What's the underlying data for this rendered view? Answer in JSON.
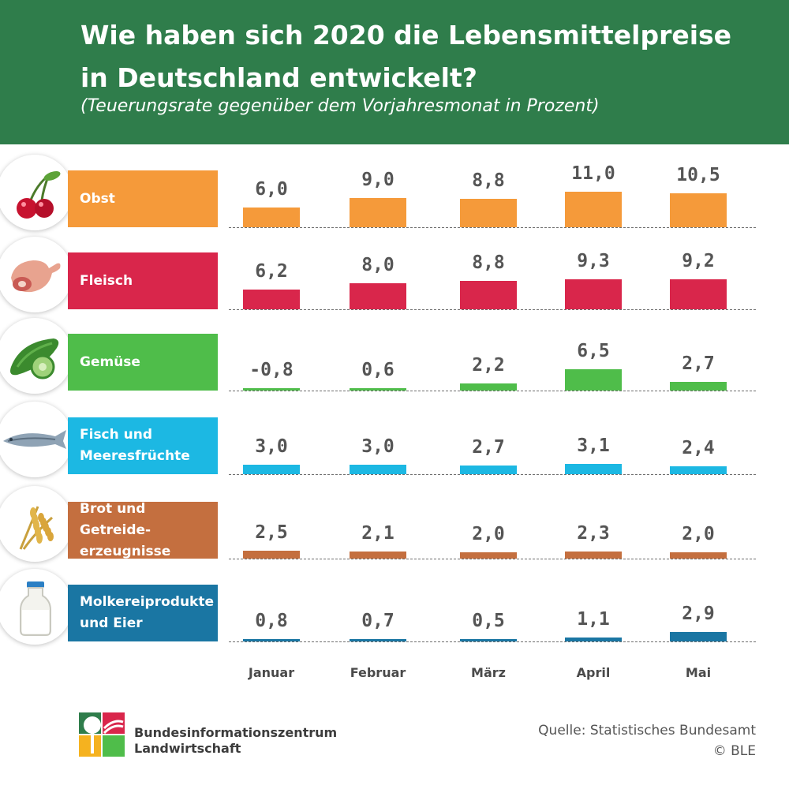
{
  "header": {
    "title_line1": "Wie haben sich 2020 die Lebensmittelpreise",
    "title_line2": "in Deutschland entwickelt?",
    "subtitle": "(Teuerungsrate gegenüber dem Vorjahresmonat in Prozent)"
  },
  "chart_data": {
    "type": "bar",
    "categories": [
      "Januar",
      "Februar",
      "März",
      "April",
      "Mai"
    ],
    "series": [
      {
        "name": "Obst",
        "values": [
          6.0,
          9.0,
          8.8,
          11.0,
          10.5
        ],
        "labels": [
          "6,0",
          "9,0",
          "8,8",
          "11,0",
          "10,5"
        ],
        "color": "#f59a3a",
        "icon": "cherry-icon"
      },
      {
        "name": "Fleisch",
        "values": [
          6.2,
          8.0,
          8.8,
          9.3,
          9.2
        ],
        "labels": [
          "6,2",
          "8,0",
          "8,8",
          "9,3",
          "9,2"
        ],
        "color": "#d9264b",
        "icon": "meat-icon"
      },
      {
        "name": "Gemüse",
        "values": [
          -0.8,
          0.6,
          2.2,
          6.5,
          2.7
        ],
        "labels": [
          "-0,8",
          "0,6",
          "2,2",
          "6,5",
          "2,7"
        ],
        "color": "#4fbd4a",
        "icon": "cucumber-icon"
      },
      {
        "name": "Fisch und Meeresfrüchte",
        "label_lines": [
          "Fisch und",
          "Meeresfrüchte"
        ],
        "values": [
          3.0,
          3.0,
          2.7,
          3.1,
          2.4
        ],
        "labels": [
          "3,0",
          "3,0",
          "2,7",
          "3,1",
          "2,4"
        ],
        "color": "#1cb8e3",
        "icon": "fish-icon"
      },
      {
        "name": "Brot und Getreideerzeugnisse",
        "label_lines": [
          "Brot und Getreide-",
          "erzeugnisse"
        ],
        "values": [
          2.5,
          2.1,
          2.0,
          2.3,
          2.0
        ],
        "labels": [
          "2,5",
          "2,1",
          "2,0",
          "2,3",
          "2,0"
        ],
        "color": "#c46f3f",
        "icon": "wheat-icon"
      },
      {
        "name": "Molkereiprodukte und Eier",
        "label_lines": [
          "Molkereiprodukte",
          "und Eier"
        ],
        "values": [
          0.8,
          0.7,
          0.5,
          1.1,
          2.9
        ],
        "labels": [
          "0,8",
          "0,7",
          "0,5",
          "1,1",
          "2,9"
        ],
        "color": "#1a76a3",
        "icon": "milk-bottle-icon"
      }
    ],
    "ylabel": "",
    "xlabel": ""
  },
  "footer": {
    "org_line1": "Bundesinformationszentrum",
    "org_line2": "Landwirtschaft",
    "source_line1": "Quelle: Statistisches Bundesamt",
    "source_line2": "© BLE"
  }
}
